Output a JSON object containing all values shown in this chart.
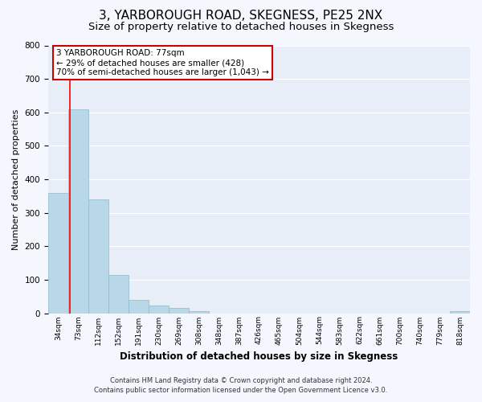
{
  "title": "3, YARBOROUGH ROAD, SKEGNESS, PE25 2NX",
  "subtitle": "Size of property relative to detached houses in Skegness",
  "xlabel": "Distribution of detached houses by size in Skegness",
  "ylabel": "Number of detached properties",
  "bar_labels": [
    "34sqm",
    "73sqm",
    "112sqm",
    "152sqm",
    "191sqm",
    "230sqm",
    "269sqm",
    "308sqm",
    "348sqm",
    "387sqm",
    "426sqm",
    "465sqm",
    "504sqm",
    "544sqm",
    "583sqm",
    "622sqm",
    "661sqm",
    "700sqm",
    "740sqm",
    "779sqm",
    "818sqm"
  ],
  "bar_heights": [
    360,
    610,
    340,
    115,
    40,
    22,
    15,
    5,
    0,
    0,
    0,
    0,
    0,
    0,
    0,
    0,
    0,
    0,
    0,
    0,
    5
  ],
  "bar_color": "#b8d8e8",
  "bar_edge_color": "#90b8cc",
  "ylim": [
    0,
    800
  ],
  "yticks": [
    0,
    100,
    200,
    300,
    400,
    500,
    600,
    700,
    800
  ],
  "red_line_x": 1.103,
  "annotation_line1": "3 YARBOROUGH ROAD: 77sqm",
  "annotation_line2": "← 29% of detached houses are smaller (428)",
  "annotation_line3": "70% of semi-detached houses are larger (1,043) →",
  "annotation_box_color": "#ffffff",
  "annotation_box_edge": "#cc0000",
  "footer_line1": "Contains HM Land Registry data © Crown copyright and database right 2024.",
  "footer_line2": "Contains public sector information licensed under the Open Government Licence v3.0.",
  "plot_bg_color": "#e8eef8",
  "fig_bg_color": "#f5f7ff",
  "grid_color": "#ffffff",
  "title_fontsize": 11,
  "subtitle_fontsize": 9.5
}
